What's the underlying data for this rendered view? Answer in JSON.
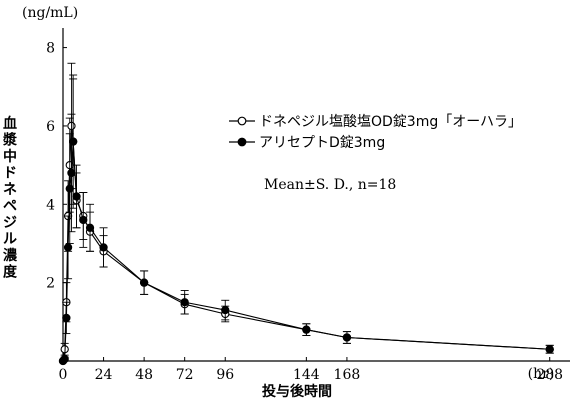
{
  "chart_data": {
    "type": "line",
    "title": "",
    "xlabel": "投与後時間",
    "x_unit": "(hr)",
    "ylabel": "血漿中ドネペジル濃度",
    "y_unit": "(ng/mL)",
    "xlim": [
      0,
      300
    ],
    "ylim": [
      0,
      8.5
    ],
    "x_ticks": [
      0,
      24,
      48,
      72,
      96,
      144,
      168,
      288
    ],
    "y_ticks": [
      2,
      4,
      6,
      8
    ],
    "grid": false,
    "legend_position": "top-right",
    "note": "Mean±S. D., n=18",
    "series": [
      {
        "name": "ドネペジル塩酸塩OD錠3mg「オーハラ」",
        "marker": "open-circle",
        "x": [
          0,
          1,
          2,
          3,
          4,
          5,
          6,
          8,
          12,
          16,
          24,
          48,
          72,
          96,
          144,
          168,
          288
        ],
        "y": [
          0,
          0.3,
          1.5,
          3.7,
          5.0,
          6.0,
          5.6,
          4.1,
          3.7,
          3.3,
          2.8,
          2.0,
          1.45,
          1.2,
          0.8,
          0.6,
          0.3
        ],
        "sd": [
          0,
          0.15,
          0.5,
          0.9,
          1.2,
          1.6,
          1.7,
          0.7,
          0.6,
          0.5,
          0.4,
          0.3,
          0.25,
          0.2,
          0.15,
          0.15,
          0.1
        ]
      },
      {
        "name": "アリセプトD錠3mg",
        "marker": "filled-circle",
        "x": [
          0,
          1,
          2,
          3,
          4,
          5,
          6,
          8,
          12,
          16,
          24,
          48,
          72,
          96,
          144,
          168,
          288
        ],
        "y": [
          0,
          0.05,
          1.1,
          2.9,
          4.4,
          4.8,
          5.6,
          4.2,
          3.6,
          3.4,
          2.9,
          2.0,
          1.5,
          1.3,
          0.8,
          0.6,
          0.3
        ],
        "sd": [
          0,
          0.05,
          0.4,
          0.8,
          1.4,
          1.5,
          1.6,
          0.8,
          0.7,
          0.6,
          0.5,
          0.3,
          0.3,
          0.25,
          0.15,
          0.15,
          0.1
        ]
      }
    ]
  }
}
